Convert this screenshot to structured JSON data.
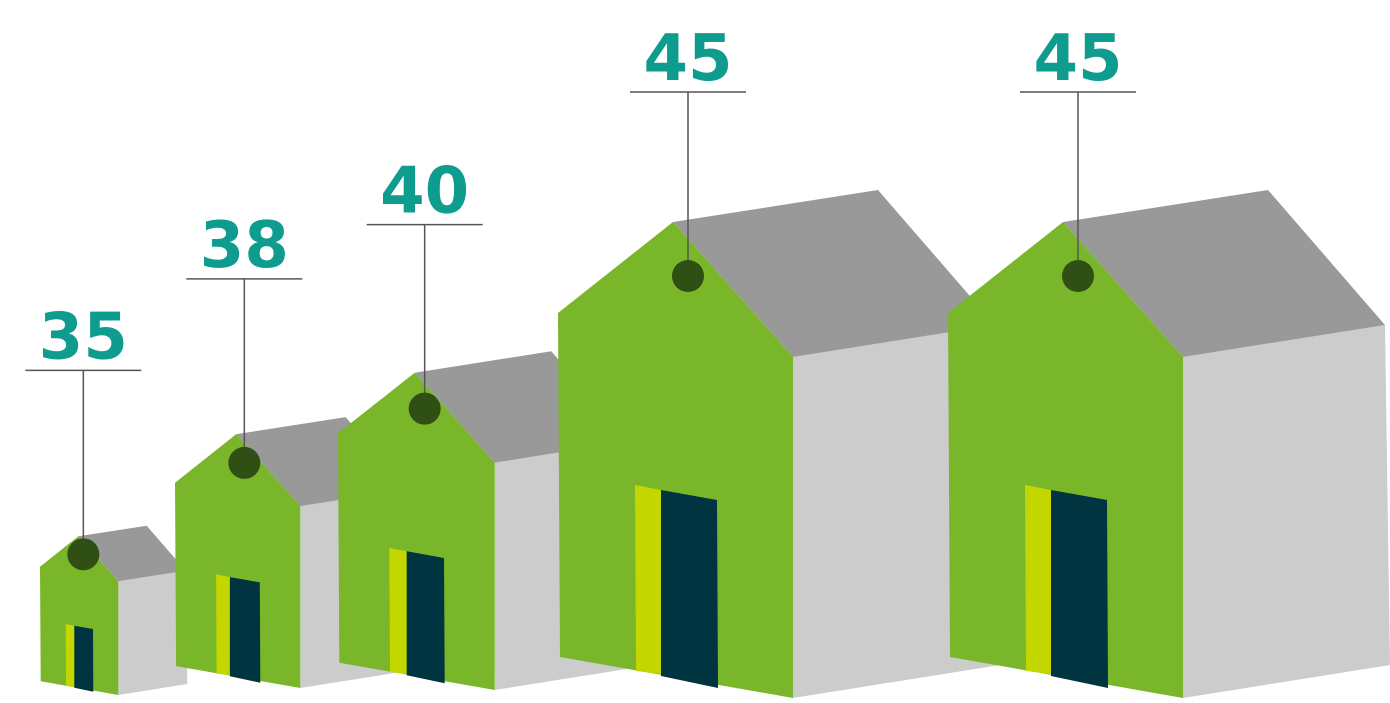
{
  "chart_data": {
    "type": "pictograph",
    "values": [
      35,
      38,
      40,
      45,
      45
    ],
    "color": "#7ab62a"
  }
}
